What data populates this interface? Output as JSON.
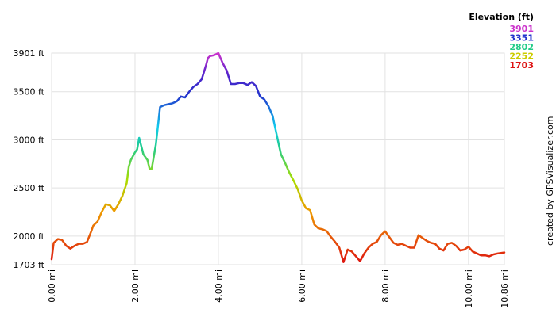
{
  "chart_data": {
    "type": "line",
    "title": "",
    "xlabel": "",
    "ylabel": "",
    "xlim": [
      0,
      10.86
    ],
    "ylim": [
      1703,
      3901
    ],
    "y_ticks": [
      {
        "value": 1703,
        "label": "1703 ft"
      },
      {
        "value": 2000,
        "label": "2000 ft"
      },
      {
        "value": 2500,
        "label": "2500 ft"
      },
      {
        "value": 3000,
        "label": "3000 ft"
      },
      {
        "value": 3500,
        "label": "3500 ft"
      },
      {
        "value": 3901,
        "label": "3901 ft"
      }
    ],
    "x_ticks": [
      {
        "value": 0,
        "label": "0.00 mi"
      },
      {
        "value": 2,
        "label": "2.00 mi"
      },
      {
        "value": 4,
        "label": "4.00 mi"
      },
      {
        "value": 6,
        "label": "6.00 mi"
      },
      {
        "value": 8,
        "label": "8.00 mi"
      },
      {
        "value": 10,
        "label": "10.00 mi"
      },
      {
        "value": 10.86,
        "label": "10.86 mi"
      }
    ],
    "grid": true,
    "legend": {
      "title": "Elevation (ft)",
      "placement": "top-right",
      "entries": [
        {
          "label": "3901",
          "color": "#cc33cc"
        },
        {
          "label": "3351",
          "color": "#2233cc"
        },
        {
          "label": "2802",
          "color": "#22cc88"
        },
        {
          "label": "2252",
          "color": "#cccc00"
        },
        {
          "label": "1703",
          "color": "#dd1111"
        }
      ]
    },
    "series": [
      {
        "x": [
          0,
          0.05,
          0.15,
          0.25,
          0.35,
          0.45,
          0.55,
          0.65,
          0.75,
          0.85,
          0.95,
          1.0,
          1.1,
          1.2,
          1.3,
          1.4,
          1.5,
          1.6,
          1.7,
          1.8,
          1.85,
          1.9,
          2.0,
          2.05,
          2.1,
          2.2,
          2.3,
          2.35,
          2.4,
          2.5,
          2.6,
          2.7,
          2.8,
          2.9,
          3.0,
          3.1,
          3.2,
          3.3,
          3.4,
          3.5,
          3.6,
          3.7,
          3.75,
          3.8,
          3.9,
          4.0,
          4.1,
          4.2,
          4.3,
          4.4,
          4.5,
          4.6,
          4.7,
          4.8,
          4.9,
          5.0,
          5.1,
          5.2,
          5.3,
          5.4,
          5.5,
          5.6,
          5.7,
          5.8,
          5.9,
          6.0,
          6.1,
          6.2,
          6.3,
          6.4,
          6.5,
          6.6,
          6.7,
          6.8,
          6.9,
          7.0,
          7.1,
          7.2,
          7.3,
          7.4,
          7.5,
          7.6,
          7.7,
          7.8,
          7.9,
          8.0,
          8.1,
          8.2,
          8.3,
          8.4,
          8.5,
          8.6,
          8.7,
          8.8,
          8.9,
          9.0,
          9.1,
          9.2,
          9.3,
          9.4,
          9.5,
          9.6,
          9.7,
          9.8,
          9.9,
          10.0,
          10.1,
          10.2,
          10.3,
          10.4,
          10.5,
          10.6,
          10.7,
          10.86
        ],
        "y": [
          1760,
          1930,
          1970,
          1960,
          1900,
          1870,
          1900,
          1920,
          1920,
          1940,
          2050,
          2110,
          2150,
          2250,
          2330,
          2320,
          2260,
          2330,
          2420,
          2550,
          2720,
          2790,
          2870,
          2900,
          3020,
          2850,
          2790,
          2700,
          2700,
          2950,
          3340,
          3360,
          3370,
          3380,
          3400,
          3450,
          3440,
          3500,
          3550,
          3580,
          3630,
          3770,
          3850,
          3870,
          3880,
          3901,
          3800,
          3720,
          3580,
          3580,
          3590,
          3590,
          3570,
          3600,
          3560,
          3450,
          3420,
          3350,
          3250,
          3050,
          2850,
          2760,
          2660,
          2580,
          2490,
          2370,
          2290,
          2270,
          2120,
          2080,
          2070,
          2050,
          1990,
          1940,
          1880,
          1730,
          1860,
          1840,
          1790,
          1740,
          1820,
          1880,
          1920,
          1940,
          2010,
          2050,
          1990,
          1930,
          1910,
          1920,
          1900,
          1880,
          1880,
          2010,
          1980,
          1950,
          1930,
          1920,
          1870,
          1850,
          1920,
          1930,
          1900,
          1850,
          1860,
          1890,
          1840,
          1820,
          1800,
          1800,
          1790,
          1810,
          1820,
          1830
        ]
      }
    ]
  },
  "credit": "created by GPSVisualizer.com"
}
